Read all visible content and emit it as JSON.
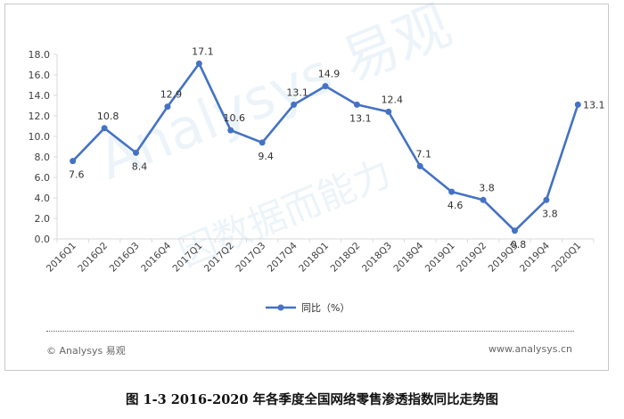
{
  "chart_data": {
    "type": "line",
    "categories": [
      "2016Q1",
      "2016Q2",
      "2016Q3",
      "2016Q4",
      "2017Q1",
      "2017Q2",
      "2017Q3",
      "2017Q4",
      "2018Q1",
      "2018Q2",
      "2018Q3",
      "2018Q4",
      "2019Q1",
      "2019Q2",
      "2019Q3",
      "2019Q4",
      "2020Q1"
    ],
    "series": [
      {
        "name": "同比（%）",
        "values": [
          7.6,
          10.8,
          8.4,
          12.9,
          17.1,
          10.6,
          9.4,
          13.1,
          14.9,
          13.1,
          12.4,
          7.1,
          4.6,
          3.8,
          0.8,
          3.8,
          13.1
        ],
        "labels": [
          "7.6",
          "10.8",
          "8.4",
          "12.9",
          "17.1",
          "10.6",
          "9.4",
          "13.1",
          "14.9",
          "13.1",
          "12.4",
          "7.1",
          "4.6",
          "3.8",
          "0.8",
          "3.8",
          "13.1"
        ]
      }
    ],
    "ylim": [
      0,
      18
    ],
    "yticks": [
      "0.0",
      "2.0",
      "4.0",
      "6.0",
      "8.0",
      "10.0",
      "12.0",
      "14.0",
      "16.0",
      "18.0"
    ],
    "grid": false,
    "legend_position": "bottom",
    "line_color": "#4472c4",
    "axis_color": "#d9d9d9"
  },
  "footer": {
    "source": "© Analysys 易观",
    "site": "www.analysys.cn"
  },
  "caption": "图 1-3 2016-2020 年各季度全国网络零售渗透指数同比走势图",
  "watermark": {
    "brand": "Analysys 易观",
    "tagline": "因数据而能力"
  }
}
